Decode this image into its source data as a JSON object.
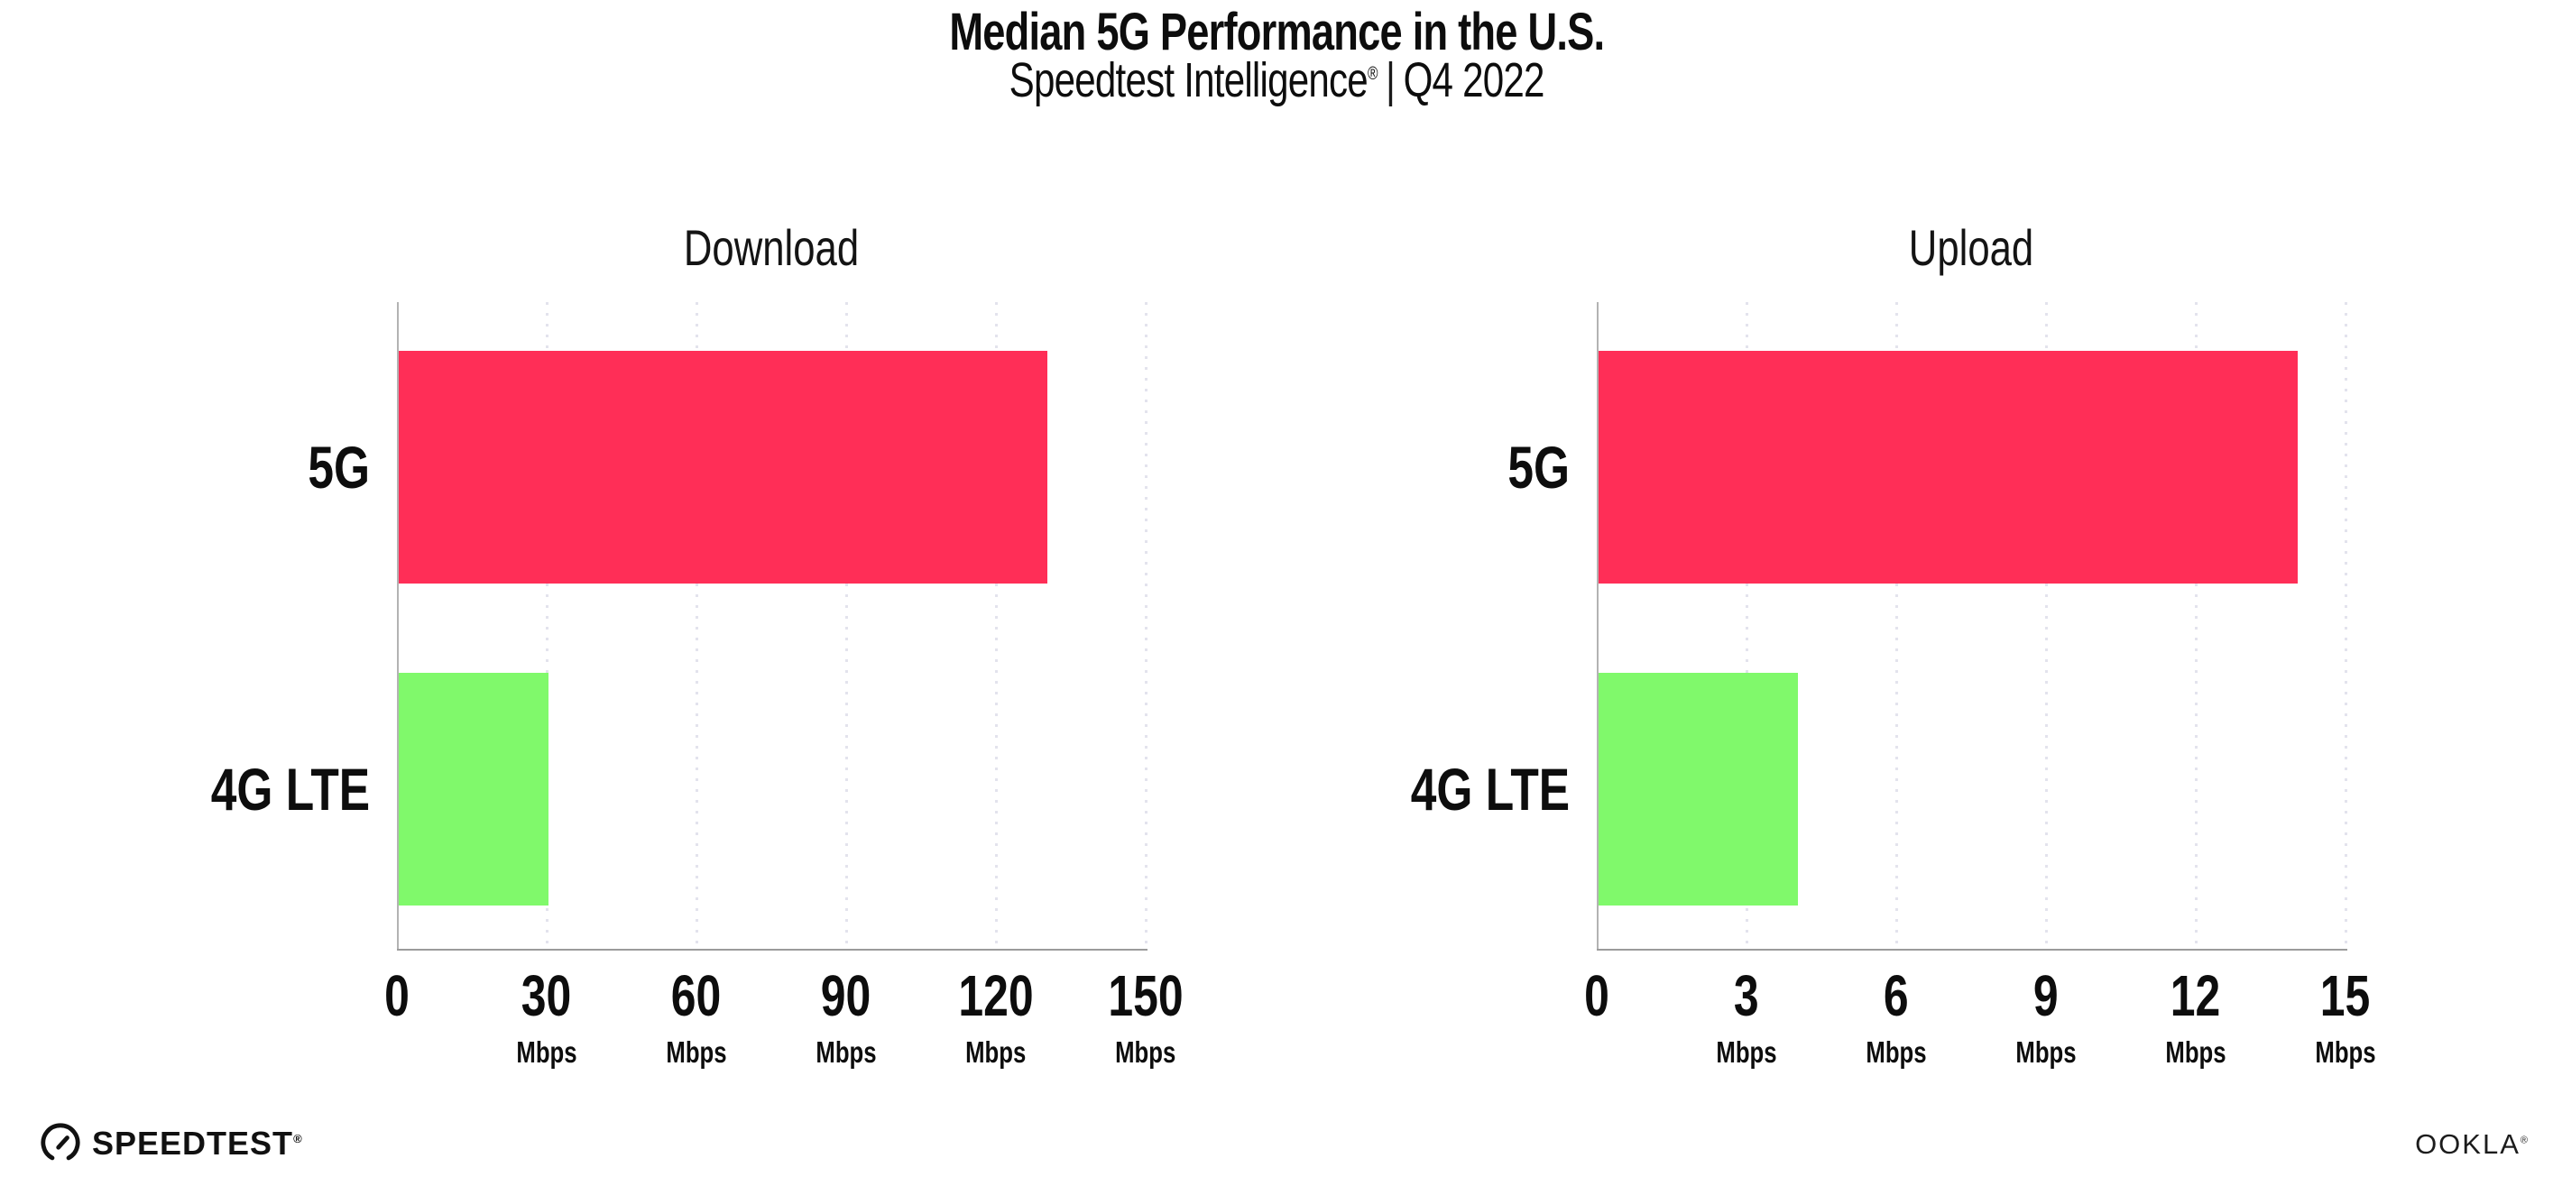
{
  "title": "Median 5G Performance in the U.S.",
  "subtitle": {
    "product": "Speedtest Intelligence",
    "registered_mark": "®",
    "separator": "|",
    "quarter": "Q4 2022"
  },
  "footer": {
    "speedtest_logo_text": "SPEEDTEST",
    "speedtest_logo_mark": "®",
    "speedtest_icon": "speedometer-gauge-icon",
    "ookla_logo_text": "OOKLA",
    "ookla_logo_mark": "®"
  },
  "colors": {
    "bar_5g": "#FF2E57",
    "bar_4g_lte": "#80F96B",
    "gridline": "#E3E3ED",
    "axis": "#9B9B9B",
    "text": "#0D0D0D"
  },
  "chart_data": [
    {
      "type": "bar",
      "orientation": "horizontal",
      "title": "Download",
      "categories": [
        "5G",
        "4G LTE"
      ],
      "values": [
        130,
        30
      ],
      "unit": "Mbps",
      "xlabel": "Mbps",
      "xlim": [
        0,
        150
      ],
      "ticks": [
        0,
        30,
        60,
        90,
        120,
        150
      ],
      "tick_step": 30,
      "grid": "dotted-vertical",
      "legend": "none",
      "bar_colors": [
        "#FF2E57",
        "#80F96B"
      ]
    },
    {
      "type": "bar",
      "orientation": "horizontal",
      "title": "Upload",
      "categories": [
        "5G",
        "4G LTE"
      ],
      "values": [
        14,
        4
      ],
      "unit": "Mbps",
      "xlabel": "Mbps",
      "xlim": [
        0,
        15
      ],
      "ticks": [
        0,
        3,
        6,
        9,
        12,
        15
      ],
      "tick_step": 3,
      "grid": "dotted-vertical",
      "legend": "none",
      "bar_colors": [
        "#FF2E57",
        "#80F96B"
      ]
    }
  ]
}
